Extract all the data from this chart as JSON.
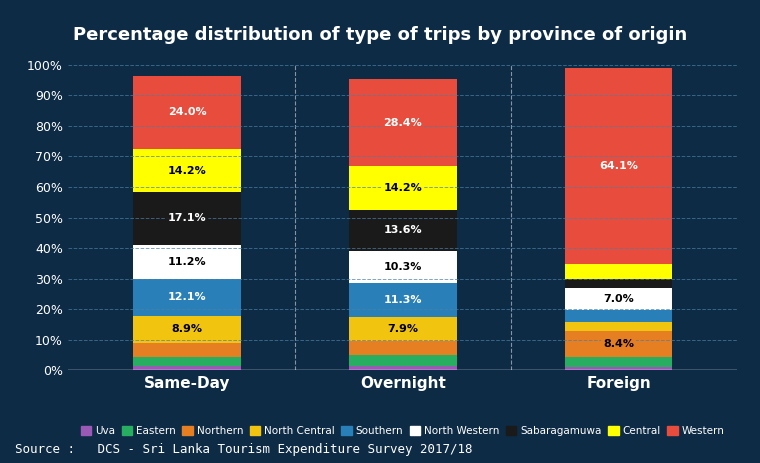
{
  "title": "Percentage distribution of type of trips by province of origin",
  "categories": [
    "Same-Day",
    "Overnight",
    "Foreign"
  ],
  "series": [
    {
      "name": "Uva",
      "color": "#9B59B6",
      "values": [
        1.5,
        1.5,
        1.0
      ]
    },
    {
      "name": "Eastern",
      "color": "#27AE60",
      "values": [
        3.0,
        3.5,
        3.5
      ]
    },
    {
      "name": "Northern",
      "color": "#E67E22",
      "values": [
        4.5,
        4.5,
        8.4
      ]
    },
    {
      "name": "North Central",
      "color": "#F1C40F",
      "values": [
        8.9,
        7.9,
        3.0
      ]
    },
    {
      "name": "Southern",
      "color": "#2980B9",
      "values": [
        12.1,
        11.3,
        4.0
      ]
    },
    {
      "name": "North Western",
      "color": "#FFFFFF",
      "values": [
        11.2,
        10.3,
        7.0
      ]
    },
    {
      "name": "Sabaragamuwa",
      "color": "#1A1A1A",
      "values": [
        17.1,
        13.6,
        3.0
      ]
    },
    {
      "name": "Central",
      "color": "#FFFF00",
      "values": [
        14.2,
        14.2,
        5.0
      ]
    },
    {
      "name": "Western",
      "color": "#E74C3C",
      "values": [
        24.0,
        28.4,
        64.1
      ]
    }
  ],
  "labels": {
    "Same-Day": {
      "North Central": "8.9%",
      "Sabaragamuwa": "17.1%",
      "Southern": "12.1%",
      "Central": "14.2%",
      "North Western": "11.2%",
      "Western": "24.0%"
    },
    "Overnight": {
      "North Central": "7.9%",
      "Sabaragamuwa": "13.6%",
      "Southern": "11.3%",
      "Central": "14.2%",
      "North Western": "10.3%",
      "Western": "28.4%"
    },
    "Foreign": {
      "North Western": "7.0%",
      "Northern": "8.4%",
      "Western": "64.1%"
    }
  },
  "label_colors": {
    "North Central": "#000000",
    "Central": "#000000",
    "North Western": "#000000",
    "Sabaragamuwa": "#FFFFFF",
    "Southern": "#FFFFFF",
    "Western": "#FFFFFF",
    "Northern": "#000000"
  },
  "label_bg_colors": {
    "North Central": "#F1C40F",
    "Central": "#FFFF00",
    "North Western": "#FFFFFF",
    "Sabaragamuwa": "#1A1A1A",
    "Southern": "#2980B9",
    "Western": "#E74C3C",
    "Northern": "#E67E22"
  },
  "background_color": "#0D2B45",
  "plot_bg_color": "#0D2B45",
  "title_color": "#FFFFFF",
  "title_bg_color": "#1B3A5C",
  "tick_color": "#FFFFFF",
  "source_text": "Source :   DCS - Sri Lanka Tourism Expenditure Survey 2017/18",
  "ylim": [
    0,
    100
  ],
  "yticks": [
    0,
    10,
    20,
    30,
    40,
    50,
    60,
    70,
    80,
    90,
    100
  ],
  "bar_width": 0.5,
  "grid_color": "#4A7FA5",
  "grid_alpha": 0.7
}
